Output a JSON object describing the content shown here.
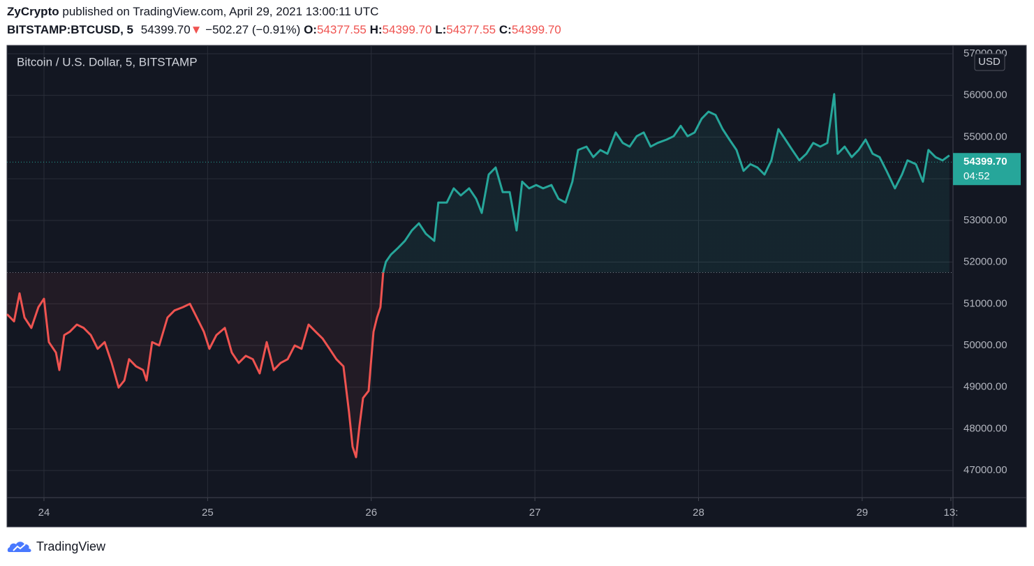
{
  "header": {
    "author": "ZyCrypto",
    "published": "published on TradingView.com, April 29, 2021 13:00:11 UTC",
    "symbol": "BITSTAMP:BTCUSD, 5",
    "price": "54399.70",
    "arrow": "▼",
    "change": "−502.27 (−0.91%)",
    "open_label": "O:",
    "open": "54377.55",
    "high_label": "H:",
    "high": "54399.70",
    "low_label": "L:",
    "low": "54377.55",
    "close_label": "C:",
    "close": "54399.70"
  },
  "chart_data": {
    "type": "baseline",
    "title": "Bitcoin / U.S. Dollar, 5, BITSTAMP",
    "currency": "USD",
    "baseline": 51750,
    "up_color": "#26a69a",
    "down_color": "#ef5350",
    "grid": true,
    "last_price": {
      "value": 54399.7,
      "label": "54399.70"
    },
    "countdown": "04:52",
    "xlim": [
      23.774,
      29.555
    ],
    "xticks": [
      {
        "value": 24,
        "label": "24"
      },
      {
        "value": 25,
        "label": "25"
      },
      {
        "value": 26,
        "label": "26"
      },
      {
        "value": 27,
        "label": "27"
      },
      {
        "value": 28,
        "label": "28"
      },
      {
        "value": 29,
        "label": "29"
      },
      {
        "value": 29.542,
        "label": "13:"
      }
    ],
    "ylim": [
      46350,
      57200
    ],
    "yticks": [
      {
        "value": 47000,
        "label": "47000.00"
      },
      {
        "value": 48000,
        "label": "48000.00"
      },
      {
        "value": 49000,
        "label": "49000.00"
      },
      {
        "value": 50000,
        "label": "50000.00"
      },
      {
        "value": 51000,
        "label": "51000.00"
      },
      {
        "value": 52000,
        "label": "52000.00"
      },
      {
        "value": 53000,
        "label": "53000.00"
      },
      {
        "value": 54000,
        "label": "54000.00"
      },
      {
        "value": 55000,
        "label": "55000.00"
      },
      {
        "value": 56000,
        "label": "56000.00"
      },
      {
        "value": 57000,
        "label": "57000.00"
      }
    ],
    "x": [
      23.774,
      23.817,
      23.851,
      23.881,
      23.923,
      23.966,
      24.0,
      24.03,
      24.073,
      24.094,
      24.124,
      24.158,
      24.201,
      24.243,
      24.286,
      24.328,
      24.371,
      24.414,
      24.456,
      24.491,
      24.52,
      24.563,
      24.606,
      24.627,
      24.661,
      24.704,
      24.755,
      24.798,
      24.849,
      24.892,
      24.934,
      24.977,
      25.011,
      25.054,
      25.105,
      25.148,
      25.19,
      25.233,
      25.276,
      25.318,
      25.361,
      25.404,
      25.446,
      25.489,
      25.532,
      25.574,
      25.617,
      25.66,
      25.702,
      25.745,
      25.787,
      25.83,
      25.864,
      25.886,
      25.907,
      25.928,
      25.95,
      25.984,
      26.014,
      26.035,
      26.056,
      26.073,
      26.09,
      26.12,
      26.163,
      26.206,
      26.248,
      26.291,
      26.334,
      26.385,
      26.41,
      26.462,
      26.504,
      26.547,
      26.598,
      26.641,
      26.675,
      26.718,
      26.76,
      26.803,
      26.846,
      26.888,
      26.922,
      26.965,
      27.008,
      27.05,
      27.101,
      27.144,
      27.187,
      27.229,
      27.264,
      27.315,
      27.357,
      27.4,
      27.443,
      27.494,
      27.537,
      27.579,
      27.622,
      27.665,
      27.707,
      27.75,
      27.805,
      27.848,
      27.891,
      27.933,
      27.976,
      28.019,
      28.061,
      28.104,
      28.147,
      28.189,
      28.232,
      28.275,
      28.317,
      28.36,
      28.403,
      28.445,
      28.488,
      28.531,
      28.573,
      28.616,
      28.659,
      28.701,
      28.744,
      28.787,
      28.829,
      28.85,
      28.893,
      28.936,
      28.978,
      29.021,
      29.064,
      29.106,
      29.149,
      29.2,
      29.243,
      29.277,
      29.328,
      29.371,
      29.405,
      29.448,
      29.491,
      29.533
    ],
    "values": [
      50750,
      50580,
      51250,
      50670,
      50420,
      50920,
      51120,
      50080,
      49830,
      49410,
      50250,
      50330,
      50500,
      50420,
      50250,
      49920,
      50080,
      49580,
      48990,
      49160,
      49670,
      49500,
      49410,
      49160,
      50080,
      50000,
      50670,
      50840,
      50920,
      51000,
      50670,
      50330,
      49920,
      50250,
      50420,
      49830,
      49580,
      49750,
      49670,
      49330,
      50080,
      49410,
      49580,
      49670,
      50000,
      49920,
      50500,
      50330,
      50170,
      49920,
      49670,
      49500,
      48400,
      47570,
      47320,
      48070,
      48740,
      48910,
      50330,
      50670,
      50920,
      51760,
      52010,
      52180,
      52340,
      52510,
      52760,
      52930,
      52680,
      52510,
      53430,
      53430,
      53770,
      53600,
      53770,
      53520,
      53180,
      54100,
      54270,
      53680,
      53680,
      52760,
      53930,
      53770,
      53850,
      53770,
      53850,
      53520,
      53430,
      53930,
      54690,
      54770,
      54520,
      54690,
      54600,
      55110,
      54860,
      54770,
      55020,
      55110,
      54770,
      54860,
      54940,
      55020,
      55270,
      55020,
      55110,
      55440,
      55610,
      55530,
      55190,
      54940,
      54690,
      54190,
      54350,
      54270,
      54100,
      54440,
      55190,
      54940,
      54690,
      54440,
      54600,
      54860,
      54770,
      54860,
      56030,
      54600,
      54770,
      54520,
      54690,
      54940,
      54600,
      54520,
      54190,
      53770,
      54100,
      54440,
      54350,
      53930,
      54690,
      54520,
      54440,
      54560
    ]
  },
  "footer": {
    "brand": "TradingView"
  }
}
